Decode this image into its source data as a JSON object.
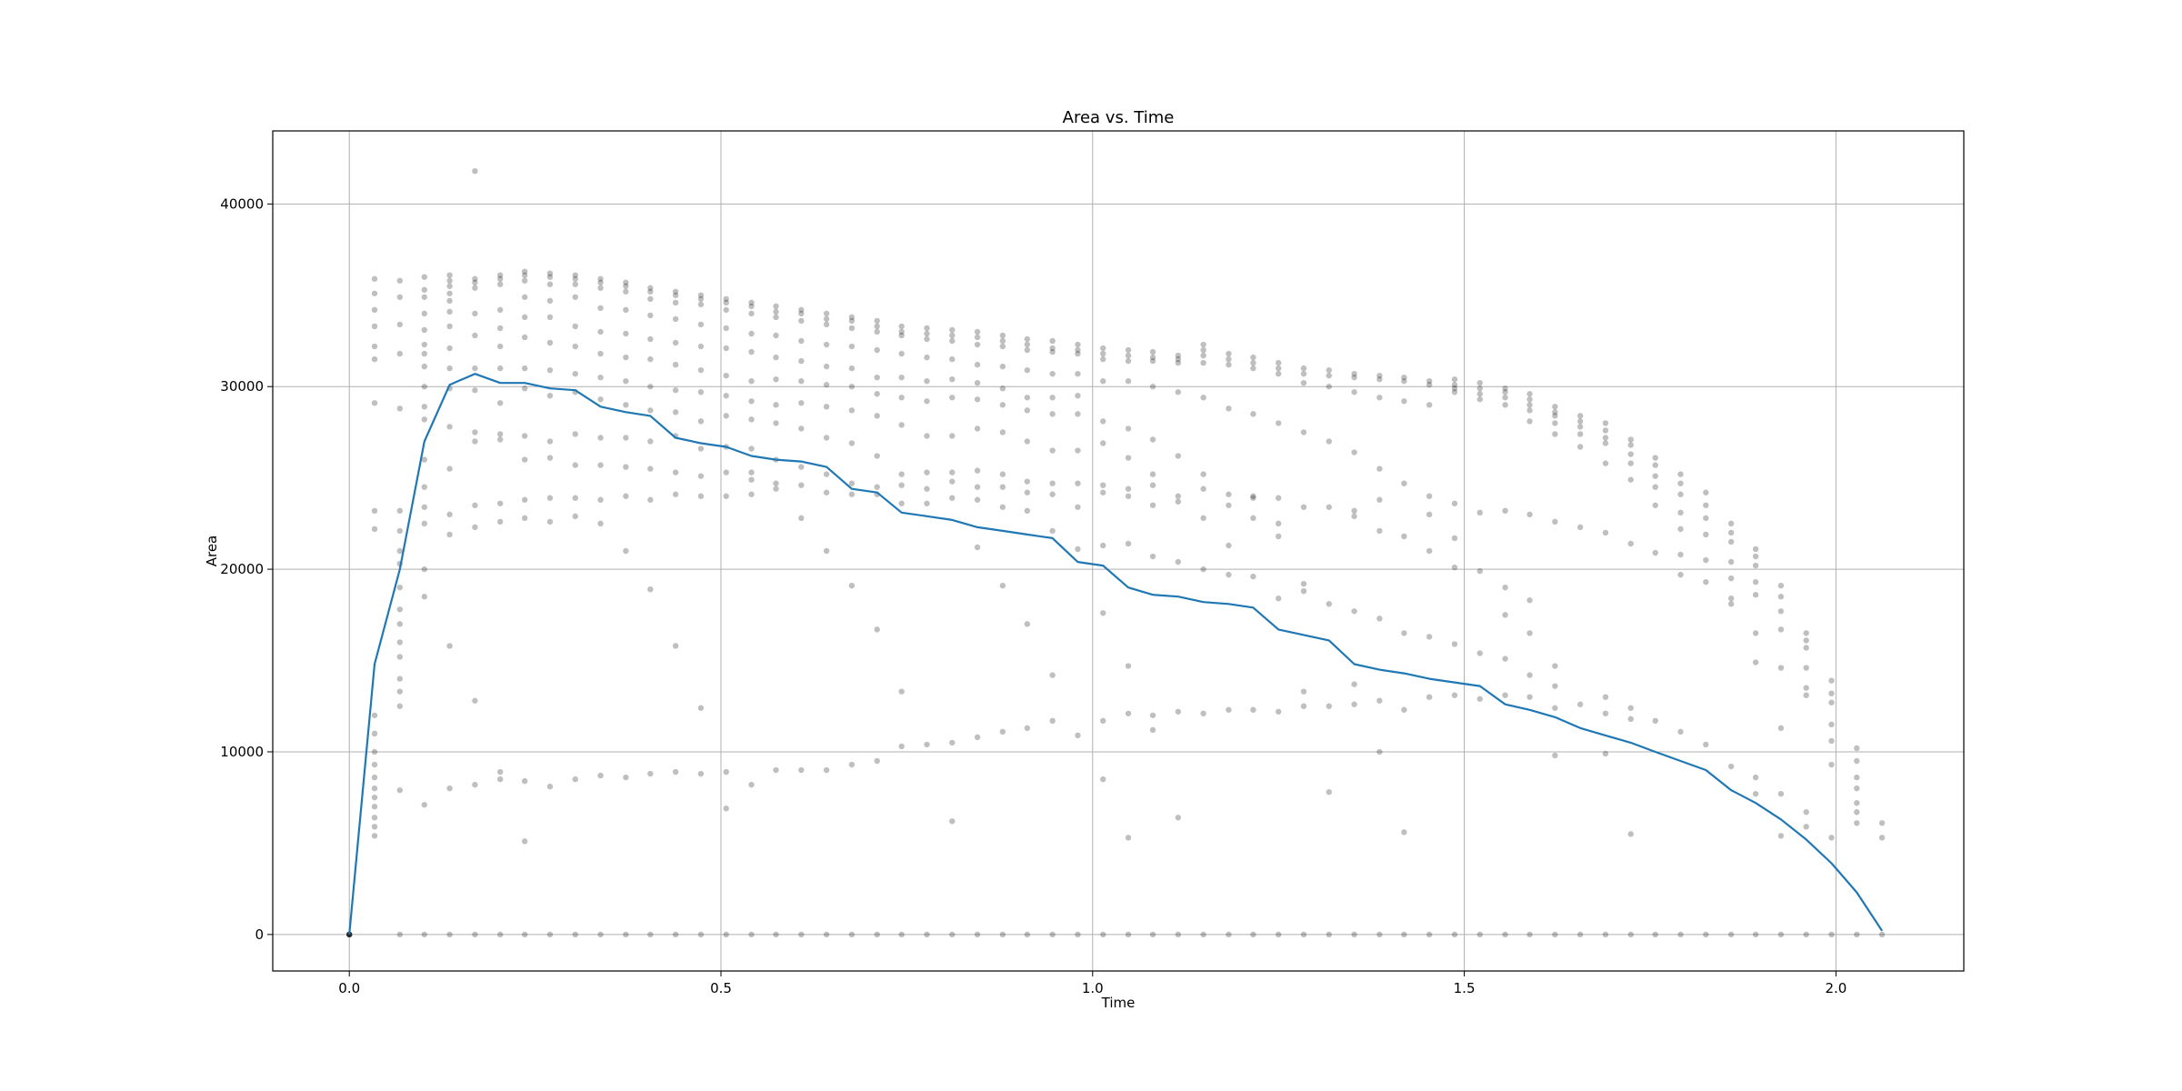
{
  "chart_data": {
    "type": "scatter",
    "title": "Area vs. Time",
    "xlabel": "Time",
    "ylabel": "Area",
    "xlim": [
      -0.103,
      2.172
    ],
    "ylim": [
      -2000,
      44000
    ],
    "grid": true,
    "legend": "none",
    "x_ticks": [
      0.0,
      0.5,
      1.0,
      1.5,
      2.0
    ],
    "x_tick_labels": [
      "0.0",
      "0.5",
      "1.0",
      "1.5",
      "2.0"
    ],
    "y_ticks": [
      0,
      10000,
      20000,
      30000,
      40000
    ],
    "y_tick_labels": [
      "0",
      "10000",
      "20000",
      "30000",
      "40000"
    ],
    "colors": {
      "points": "#000000",
      "mean_line": "#1f77b4",
      "grid": "#b0b0b0"
    },
    "scatter_columns": [
      {
        "x": 0.0,
        "y": [
          0,
          0,
          0,
          0,
          0,
          0
        ]
      },
      {
        "x": 0.034,
        "y": [
          5400,
          5900,
          6400,
          7000,
          7500,
          8000,
          8600,
          9300,
          10000,
          11000,
          12000,
          22200,
          23200,
          29100,
          31500,
          32200,
          33300,
          34200,
          35100,
          35900
        ]
      },
      {
        "x": 0.068,
        "y": [
          0,
          7900,
          12500,
          13300,
          14000,
          15200,
          16000,
          17000,
          17800,
          19000,
          20300,
          21000,
          22100,
          23200,
          28800,
          31800,
          33400,
          34900,
          35800
        ]
      },
      {
        "x": 0.101,
        "y": [
          0,
          7100,
          18500,
          20000,
          22500,
          23400,
          24500,
          26000,
          28200,
          28900,
          30000,
          31100,
          31800,
          32300,
          33100,
          34000,
          34900,
          35300,
          36000
        ]
      },
      {
        "x": 0.135,
        "y": [
          0,
          8000,
          15800,
          21900,
          23000,
          25500,
          27800,
          29900,
          31000,
          32100,
          33300,
          34100,
          34700,
          35100,
          35500,
          35800,
          36100
        ]
      },
      {
        "x": 0.169,
        "y": [
          0,
          8200,
          12800,
          22300,
          23500,
          27000,
          27500,
          29800,
          31000,
          32800,
          34000,
          35400,
          35700,
          35900,
          41800
        ]
      },
      {
        "x": 0.203,
        "y": [
          0,
          8500,
          8900,
          22600,
          23600,
          27100,
          27400,
          29100,
          31000,
          32200,
          33200,
          34200,
          35600,
          35900,
          36100
        ]
      },
      {
        "x": 0.236,
        "y": [
          0,
          5100,
          8400,
          22800,
          23800,
          26000,
          27300,
          29900,
          31000,
          32700,
          33800,
          34900,
          35800,
          36100,
          36300
        ]
      },
      {
        "x": 0.27,
        "y": [
          0,
          8100,
          22600,
          23900,
          26100,
          27000,
          29500,
          30900,
          32400,
          33800,
          34700,
          35600,
          36000,
          36200
        ]
      },
      {
        "x": 0.304,
        "y": [
          0,
          8500,
          22900,
          23900,
          25700,
          27400,
          29700,
          30700,
          32200,
          33300,
          34900,
          35600,
          35900,
          36100
        ]
      },
      {
        "x": 0.338,
        "y": [
          0,
          8700,
          22500,
          23800,
          25700,
          27200,
          29300,
          30500,
          31800,
          33000,
          34300,
          35400,
          35700,
          35900
        ]
      },
      {
        "x": 0.372,
        "y": [
          0,
          8600,
          21000,
          24000,
          25600,
          27200,
          29000,
          30300,
          31600,
          32900,
          34200,
          35200,
          35500,
          35700
        ]
      },
      {
        "x": 0.405,
        "y": [
          0,
          8800,
          18900,
          23800,
          25500,
          27000,
          28700,
          30000,
          31500,
          32600,
          33900,
          34800,
          35200,
          35400
        ]
      },
      {
        "x": 0.439,
        "y": [
          0,
          8900,
          15800,
          24100,
          25300,
          27300,
          28600,
          29800,
          31200,
          32400,
          33700,
          34600,
          35000,
          35200
        ]
      },
      {
        "x": 0.473,
        "y": [
          0,
          8800,
          12400,
          24000,
          25100,
          26600,
          28100,
          29700,
          30900,
          32200,
          33400,
          34500,
          34800,
          35000
        ]
      },
      {
        "x": 0.507,
        "y": [
          0,
          6900,
          8900,
          24000,
          25300,
          26700,
          28400,
          29500,
          30600,
          32100,
          33200,
          34200,
          34600,
          34800
        ]
      },
      {
        "x": 0.541,
        "y": [
          0,
          8200,
          24100,
          24900,
          25300,
          26600,
          28200,
          29200,
          30300,
          31900,
          32900,
          34000,
          34400,
          34600
        ]
      },
      {
        "x": 0.574,
        "y": [
          0,
          9000,
          24400,
          24700,
          26000,
          28000,
          29000,
          30400,
          31600,
          32800,
          33800,
          34100,
          34400
        ]
      },
      {
        "x": 0.608,
        "y": [
          0,
          9000,
          22800,
          24600,
          25600,
          27700,
          29100,
          30300,
          31400,
          32500,
          33600,
          34000,
          34200
        ]
      },
      {
        "x": 0.642,
        "y": [
          0,
          9000,
          21000,
          24200,
          25200,
          27200,
          28900,
          30100,
          31100,
          32300,
          33400,
          33700,
          34000
        ]
      },
      {
        "x": 0.676,
        "y": [
          0,
          9300,
          19100,
          24100,
          24700,
          26900,
          28700,
          30000,
          31000,
          32200,
          33200,
          33600,
          33800
        ]
      },
      {
        "x": 0.71,
        "y": [
          0,
          9500,
          16700,
          24100,
          24500,
          26200,
          28400,
          29600,
          30500,
          32000,
          33000,
          33300,
          33600
        ]
      },
      {
        "x": 0.743,
        "y": [
          0,
          10300,
          13300,
          23600,
          24600,
          25200,
          27900,
          29400,
          30500,
          31800,
          32800,
          33000,
          33300
        ]
      },
      {
        "x": 0.777,
        "y": [
          0,
          10400,
          23600,
          24400,
          25300,
          27300,
          29200,
          30300,
          31600,
          32600,
          32900,
          33200
        ]
      },
      {
        "x": 0.811,
        "y": [
          0,
          6200,
          10500,
          23900,
          24800,
          25300,
          27300,
          29400,
          30400,
          31500,
          32500,
          32800,
          33100
        ]
      },
      {
        "x": 0.845,
        "y": [
          0,
          10800,
          21200,
          23800,
          24500,
          25400,
          27700,
          29300,
          30200,
          31200,
          32300,
          32700,
          33000
        ]
      },
      {
        "x": 0.879,
        "y": [
          0,
          11100,
          19100,
          23400,
          24500,
          25200,
          27500,
          29000,
          29900,
          31100,
          32200,
          32500,
          32800
        ]
      },
      {
        "x": 0.912,
        "y": [
          0,
          11300,
          17000,
          23200,
          24200,
          24800,
          27000,
          28700,
          29400,
          30900,
          32000,
          32300,
          32600
        ]
      },
      {
        "x": 0.946,
        "y": [
          0,
          11700,
          14200,
          22100,
          24100,
          24700,
          26500,
          28500,
          29400,
          30700,
          31900,
          32100,
          32500
        ]
      },
      {
        "x": 0.98,
        "y": [
          0,
          10900,
          21100,
          23400,
          24700,
          26500,
          28500,
          29500,
          30700,
          31800,
          32000,
          32300
        ]
      },
      {
        "x": 1.014,
        "y": [
          0,
          8500,
          11700,
          17600,
          21300,
          24200,
          24600,
          26900,
          28100,
          30300,
          31500,
          31800,
          32100
        ]
      },
      {
        "x": 1.048,
        "y": [
          0,
          5300,
          12100,
          14700,
          21400,
          24000,
          24400,
          26100,
          27700,
          30300,
          31400,
          31700,
          32000
        ]
      },
      {
        "x": 1.081,
        "y": [
          0,
          11200,
          12000,
          20700,
          23500,
          24600,
          25200,
          27100,
          30000,
          31400,
          31600,
          31900
        ]
      },
      {
        "x": 1.115,
        "y": [
          0,
          6400,
          12200,
          20400,
          23700,
          24000,
          26200,
          29700,
          31300,
          31500,
          31700
        ]
      },
      {
        "x": 1.149,
        "y": [
          0,
          12100,
          20000,
          22800,
          24400,
          25200,
          29400,
          31300,
          31700,
          32000,
          32300
        ]
      },
      {
        "x": 1.183,
        "y": [
          0,
          12300,
          19700,
          21300,
          23500,
          24100,
          28800,
          31200,
          31500,
          31800
        ]
      },
      {
        "x": 1.216,
        "y": [
          0,
          12300,
          19600,
          22800,
          23900,
          24000,
          28500,
          31000,
          31300,
          31600
        ]
      },
      {
        "x": 1.25,
        "y": [
          0,
          12200,
          18400,
          21800,
          22500,
          23900,
          28000,
          30700,
          31000,
          31300
        ]
      },
      {
        "x": 1.284,
        "y": [
          0,
          12500,
          13300,
          18800,
          19200,
          23400,
          27500,
          30200,
          30700,
          31000
        ]
      },
      {
        "x": 1.318,
        "y": [
          0,
          7800,
          12500,
          18100,
          23400,
          27000,
          30000,
          30600,
          30900
        ]
      },
      {
        "x": 1.352,
        "y": [
          0,
          12600,
          13700,
          17700,
          22900,
          23200,
          26400,
          29700,
          30500,
          30700
        ]
      },
      {
        "x": 1.386,
        "y": [
          0,
          10000,
          12800,
          17300,
          22100,
          23800,
          25500,
          29400,
          30400,
          30600
        ]
      },
      {
        "x": 1.419,
        "y": [
          0,
          5600,
          12300,
          16500,
          21800,
          24700,
          29200,
          30300,
          30500
        ]
      },
      {
        "x": 1.453,
        "y": [
          0,
          13000,
          16300,
          21000,
          23000,
          24000,
          29000,
          30100,
          30300
        ]
      },
      {
        "x": 1.487,
        "y": [
          0,
          13100,
          15900,
          20100,
          21700,
          23600,
          29700,
          29900,
          30100,
          30400
        ]
      },
      {
        "x": 1.521,
        "y": [
          0,
          12900,
          15400,
          19900,
          23100,
          29300,
          29600,
          29900,
          30200
        ]
      },
      {
        "x": 1.555,
        "y": [
          0,
          13100,
          15100,
          17500,
          19000,
          23200,
          29000,
          29400,
          29700,
          29900
        ]
      },
      {
        "x": 1.588,
        "y": [
          0,
          13000,
          14200,
          16500,
          18300,
          23000,
          28100,
          28700,
          29000,
          29300,
          29600
        ]
      },
      {
        "x": 1.622,
        "y": [
          0,
          9800,
          12400,
          13600,
          14700,
          22600,
          27400,
          28000,
          28400,
          28600,
          28900
        ]
      },
      {
        "x": 1.656,
        "y": [
          0,
          12600,
          22300,
          26700,
          27400,
          27800,
          28100,
          28400
        ]
      },
      {
        "x": 1.69,
        "y": [
          0,
          9900,
          12100,
          13000,
          22000,
          25800,
          26900,
          27200,
          27600,
          28000
        ]
      },
      {
        "x": 1.724,
        "y": [
          0,
          5500,
          11800,
          12400,
          21400,
          24900,
          25800,
          26300,
          26800,
          27100
        ]
      },
      {
        "x": 1.757,
        "y": [
          0,
          11700,
          20900,
          23500,
          24500,
          25100,
          25700,
          26100
        ]
      },
      {
        "x": 1.791,
        "y": [
          0,
          11100,
          19700,
          20800,
          22200,
          23100,
          24100,
          24700,
          25200
        ]
      },
      {
        "x": 1.825,
        "y": [
          0,
          10400,
          19300,
          20500,
          21900,
          22800,
          23500,
          24200
        ]
      },
      {
        "x": 1.859,
        "y": [
          0,
          9200,
          18100,
          18400,
          19500,
          20400,
          21500,
          22000,
          22500
        ]
      },
      {
        "x": 1.892,
        "y": [
          0,
          7700,
          8600,
          14900,
          16500,
          18600,
          19300,
          20200,
          20700,
          21100
        ]
      },
      {
        "x": 1.926,
        "y": [
          0,
          5400,
          7700,
          11300,
          14600,
          16700,
          17700,
          18500,
          19100
        ]
      },
      {
        "x": 1.96,
        "y": [
          0,
          5900,
          6700,
          13100,
          13500,
          14600,
          15700,
          16100,
          16500
        ]
      },
      {
        "x": 1.994,
        "y": [
          0,
          5300,
          9300,
          10600,
          11500,
          12700,
          13200,
          13900
        ]
      },
      {
        "x": 2.028,
        "y": [
          0,
          6100,
          6700,
          7200,
          8000,
          8600,
          9500,
          10200
        ]
      },
      {
        "x": 2.062,
        "y": [
          0,
          5300,
          6100
        ]
      }
    ],
    "series": [
      {
        "x": [
          0.0,
          0.034,
          0.068,
          0.101,
          0.135,
          0.169,
          0.203,
          0.236,
          0.27,
          0.304,
          0.338,
          0.372,
          0.405,
          0.439,
          0.473,
          0.507,
          0.541,
          0.574,
          0.608,
          0.642,
          0.676,
          0.71,
          0.743,
          0.777,
          0.811,
          0.845,
          0.879,
          0.912,
          0.946,
          0.98,
          1.014,
          1.048,
          1.081,
          1.115,
          1.149,
          1.183,
          1.216,
          1.25,
          1.284,
          1.318,
          1.352,
          1.386,
          1.419,
          1.453,
          1.487,
          1.521,
          1.555,
          1.588,
          1.622,
          1.656,
          1.69,
          1.724,
          1.757,
          1.791,
          1.825,
          1.859,
          1.892,
          1.926,
          1.96,
          1.994,
          2.028,
          2.062
        ],
        "values": [
          0,
          14800,
          20000,
          27000,
          30100,
          30700,
          30200,
          30200,
          29900,
          29800,
          28900,
          28600,
          28400,
          27200,
          26900,
          26700,
          26200,
          26000,
          25900,
          25600,
          24400,
          24200,
          23100,
          22900,
          22700,
          22300,
          22100,
          21900,
          21700,
          20400,
          20200,
          19000,
          18600,
          18500,
          18200,
          18100,
          17900,
          16700,
          16400,
          16100,
          14800,
          14500,
          14300,
          14000,
          13800,
          13600,
          12600,
          12300,
          11900,
          11300,
          10900,
          10500,
          10000,
          9500,
          9000,
          7900,
          7200,
          6300,
          5200,
          3900,
          2300,
          200
        ]
      }
    ]
  }
}
